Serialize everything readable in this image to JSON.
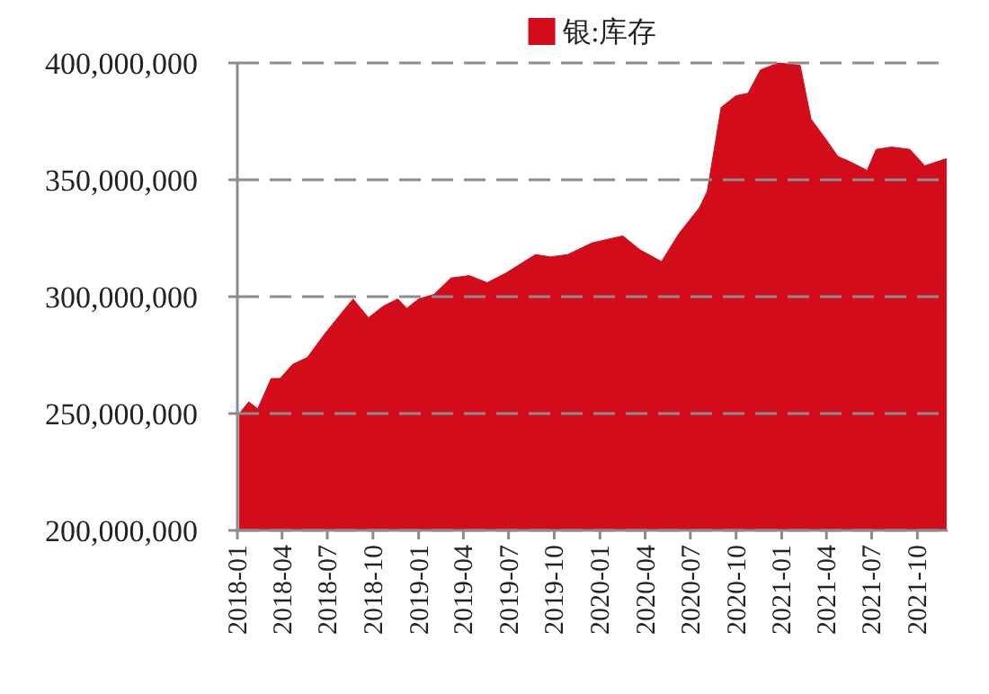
{
  "chart_data": {
    "type": "area",
    "x": [
      "2018-01-05",
      "2018-01-24",
      "2018-02-11",
      "2018-03-10",
      "2018-03-28",
      "2018-04-22",
      "2018-05-22",
      "2018-06-22",
      "2018-07-22",
      "2018-08-22",
      "2018-09-22",
      "2018-10-22",
      "2018-11-20",
      "2018-12-08",
      "2019-01-01",
      "2019-02-01",
      "2019-03-07",
      "2019-04-13",
      "2019-05-19",
      "2019-06-25",
      "2019-07-25",
      "2019-08-24",
      "2019-09-24",
      "2019-10-28",
      "2019-12-16",
      "2020-02-16",
      "2020-03-22",
      "2020-05-04",
      "2020-06-08",
      "2020-07-19",
      "2020-08-04",
      "2020-09-01",
      "2020-10-01",
      "2020-10-25",
      "2020-11-19",
      "2020-12-25",
      "2021-02-07",
      "2021-03-01",
      "2021-04-01",
      "2021-04-24",
      "2021-05-16",
      "2021-06-22",
      "2021-07-10",
      "2021-08-10",
      "2021-09-16",
      "2021-10-16",
      "2021-11-28"
    ],
    "series": [
      {
        "name": "银:库存",
        "color": "#d20c1b",
        "values": [
          250000000,
          255000000,
          252000000,
          265000000,
          265000000,
          271000000,
          274000000,
          283000000,
          291000000,
          299000000,
          291000000,
          296000000,
          299000000,
          295000000,
          299000000,
          301000000,
          308000000,
          309000000,
          306000000,
          310000000,
          314000000,
          318000000,
          317000000,
          318000000,
          323000000,
          326000000,
          320000000,
          315000000,
          327000000,
          338000000,
          345000000,
          381000000,
          386000000,
          387000000,
          397000000,
          400000000,
          399000000,
          376000000,
          367000000,
          360000000,
          358000000,
          354000000,
          363000000,
          364000000,
          363000000,
          356000000,
          359000000
        ]
      }
    ],
    "xlim": [
      "2018-01-01",
      "2021-12-01"
    ],
    "xticks": [
      "2018-01",
      "2018-04",
      "2018-07",
      "2018-10",
      "2019-01",
      "2019-04",
      "2019-07",
      "2019-10",
      "2020-01",
      "2020-04",
      "2020-07",
      "2020-10",
      "2021-01",
      "2021-04",
      "2021-07",
      "2021-10"
    ],
    "ylim": [
      200000000,
      400000000
    ],
    "yticks": [
      {
        "value": 200000000,
        "label": "200,000,000"
      },
      {
        "value": 250000000,
        "label": "250,000,000"
      },
      {
        "value": 300000000,
        "label": "300,000,000"
      },
      {
        "value": 350000000,
        "label": "350,000,000"
      },
      {
        "value": 400000000,
        "label": "400,000,000"
      }
    ],
    "grid": "y",
    "legend": "top"
  }
}
